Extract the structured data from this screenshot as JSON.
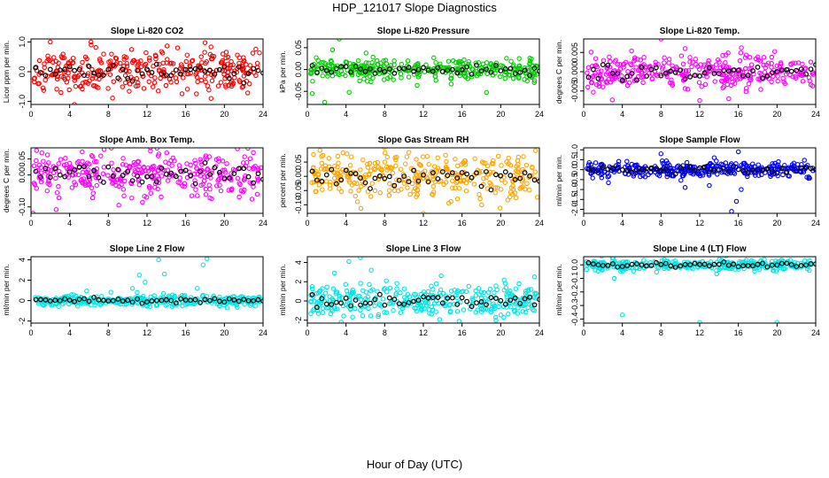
{
  "title": "HDP_121017  Slope Diagnostics",
  "x_axis_title": "Hour of Day (UTC)",
  "chart_data": [
    {
      "type": "scatter",
      "title": "Slope Li-820 CO2",
      "ylabel": "Licor ppm per min.",
      "color": "#ff0000",
      "xlim": [
        0,
        24
      ],
      "ylim": [
        -1.1,
        1.1
      ],
      "xticks": [
        0,
        4,
        8,
        12,
        16,
        20,
        24
      ],
      "yticks": [
        -1.0,
        0.0,
        1.0
      ],
      "ytick_labels": [
        "-1.0",
        "0.0",
        "1.0"
      ],
      "spread": 0.32,
      "outliers": [
        [
          2,
          1.0
        ],
        [
          4.5,
          -1.1
        ],
        [
          6.2,
          1.0
        ],
        [
          3.1,
          -0.7
        ]
      ]
    },
    {
      "type": "scatter",
      "title": "Slope Li-820 Pressure",
      "ylabel": "kPa per min.",
      "color": "#00cc00",
      "xlim": [
        0,
        24
      ],
      "ylim": [
        -0.08,
        0.07
      ],
      "xticks": [
        0,
        4,
        8,
        12,
        16,
        20,
        24
      ],
      "yticks": [
        -0.05,
        0.0,
        0.05
      ],
      "ytick_labels": [
        "-0.05",
        "0.00",
        "0.05"
      ],
      "spread": 0.011,
      "outliers": [
        [
          0.5,
          -0.055
        ],
        [
          1.8,
          -0.075
        ],
        [
          3.3,
          0.07
        ],
        [
          2.6,
          0.045
        ]
      ]
    },
    {
      "type": "scatter",
      "title": "Slope Li-820 Temp.",
      "ylabel": "degrees C per min.",
      "color": "#ff00ff",
      "xlim": [
        0,
        24
      ],
      "ylim": [
        -0.0085,
        0.0085
      ],
      "xticks": [
        0,
        4,
        8,
        12,
        16,
        20,
        24
      ],
      "yticks": [
        -0.005,
        0.0,
        0.005
      ],
      "ytick_labels": [
        "-0.005",
        "0.000",
        "0.005"
      ],
      "spread": 0.002,
      "outliers": [
        [
          8,
          0.0085
        ],
        [
          12,
          -0.0075
        ],
        [
          15,
          -0.007
        ],
        [
          10.5,
          0.006
        ]
      ]
    },
    {
      "type": "scatter",
      "title": "Slope Amb. Box Temp.",
      "ylabel": "degrees C per min.",
      "color": "#ff00ff",
      "xlim": [
        0,
        24
      ],
      "ylim": [
        -0.12,
        0.085
      ],
      "xticks": [
        0,
        4,
        8,
        12,
        16,
        20,
        24
      ],
      "yticks": [
        -0.1,
        0.0,
        0.05
      ],
      "ytick_labels": [
        "-0.10",
        "0.00",
        "0.05"
      ],
      "spread": 0.035,
      "outliers": [
        [
          0.2,
          -0.12
        ],
        [
          23,
          0.07
        ]
      ]
    },
    {
      "type": "scatter",
      "title": "Slope Gas Stream RH",
      "ylabel": "percent per min.",
      "color": "#ffa500",
      "xlim": [
        0,
        24
      ],
      "ylim": [
        -0.13,
        0.1
      ],
      "xticks": [
        0,
        4,
        8,
        12,
        16,
        20,
        24
      ],
      "yticks": [
        -0.1,
        -0.05,
        0.0,
        0.05
      ],
      "ytick_labels": [
        "-0.10",
        "-0.05",
        "0.00",
        "0.05"
      ],
      "spread": 0.038,
      "outliers": [
        [
          12,
          -0.13
        ],
        [
          23.6,
          0.09
        ]
      ]
    },
    {
      "type": "scatter",
      "title": "Slope Sample Flow",
      "ylabel": "ml/min per min.",
      "color": "#0000ff",
      "xlim": [
        0,
        24
      ],
      "ylim": [
        -2.2,
        1.1
      ],
      "xticks": [
        0,
        4,
        8,
        12,
        16,
        20,
        24
      ],
      "yticks": [
        -2.0,
        -1.5,
        -1.0,
        -0.5,
        0.0,
        0.5,
        1.0
      ],
      "ytick_labels": [
        "-2.0",
        "-1.5",
        "-1.0",
        "-0.5",
        "0.0",
        "0.5",
        "1.0"
      ],
      "spread": 0.18,
      "outliers": [
        [
          13,
          -0.8
        ],
        [
          15.3,
          -2.1
        ],
        [
          15.8,
          -1.6
        ],
        [
          16.3,
          -1.0
        ],
        [
          8,
          0.8
        ],
        [
          13.5,
          0.6
        ],
        [
          16,
          0.9
        ],
        [
          10.5,
          -0.9
        ]
      ]
    },
    {
      "type": "scatter",
      "title": "Slope Line 2 Flow",
      "ylabel": "ml/min per min.",
      "color": "#00e5e5",
      "xlim": [
        0,
        24
      ],
      "ylim": [
        -2.2,
        4.3
      ],
      "xticks": [
        0,
        4,
        8,
        12,
        16,
        20,
        24
      ],
      "yticks": [
        -2,
        0,
        2,
        4
      ],
      "ytick_labels": [
        "-2",
        "0",
        "2",
        "4"
      ],
      "spread": 0.25,
      "outliers": [
        [
          10.5,
          1.2
        ],
        [
          11.2,
          2.5
        ],
        [
          11.8,
          1.8
        ],
        [
          13.2,
          4.0
        ],
        [
          13.8,
          2.6
        ],
        [
          17.8,
          3.5
        ],
        [
          18.2,
          4.1
        ],
        [
          17.2,
          1.2
        ]
      ]
    },
    {
      "type": "scatter",
      "title": "Slope Line 3 Flow",
      "ylabel": "ml/min per min.",
      "color": "#00e5e5",
      "xlim": [
        0,
        24
      ],
      "ylim": [
        -2.3,
        4.6
      ],
      "xticks": [
        0,
        4,
        8,
        12,
        16,
        20,
        24
      ],
      "yticks": [
        -2,
        0,
        2,
        4
      ],
      "ytick_labels": [
        "-2",
        "0",
        "2",
        "4"
      ],
      "spread": 0.85,
      "outliers": [
        [
          4.3,
          4.1
        ],
        [
          5.5,
          4.5
        ],
        [
          6.6,
          3.2
        ],
        [
          2.8,
          2.9
        ],
        [
          3.5,
          -2.2
        ],
        [
          0.5,
          1.5
        ],
        [
          23.5,
          2.5
        ]
      ]
    },
    {
      "type": "scatter",
      "title": "Slope Line 4 (LT) Flow",
      "ylabel": "ml/min per min.",
      "color": "#00e5e5",
      "xlim": [
        0,
        24
      ],
      "ylim": [
        -0.43,
        0.06
      ],
      "xticks": [
        0,
        4,
        8,
        12,
        16,
        20,
        24
      ],
      "yticks": [
        -0.4,
        -0.3,
        -0.2,
        -0.1,
        0.0
      ],
      "ytick_labels": [
        "-0.4",
        "-0.3",
        "-0.2",
        "-0.1",
        "0.0"
      ],
      "spread": 0.02,
      "outliers": [
        [
          4,
          -0.37
        ],
        [
          12,
          -0.425
        ],
        [
          20,
          -0.425
        ]
      ]
    }
  ]
}
